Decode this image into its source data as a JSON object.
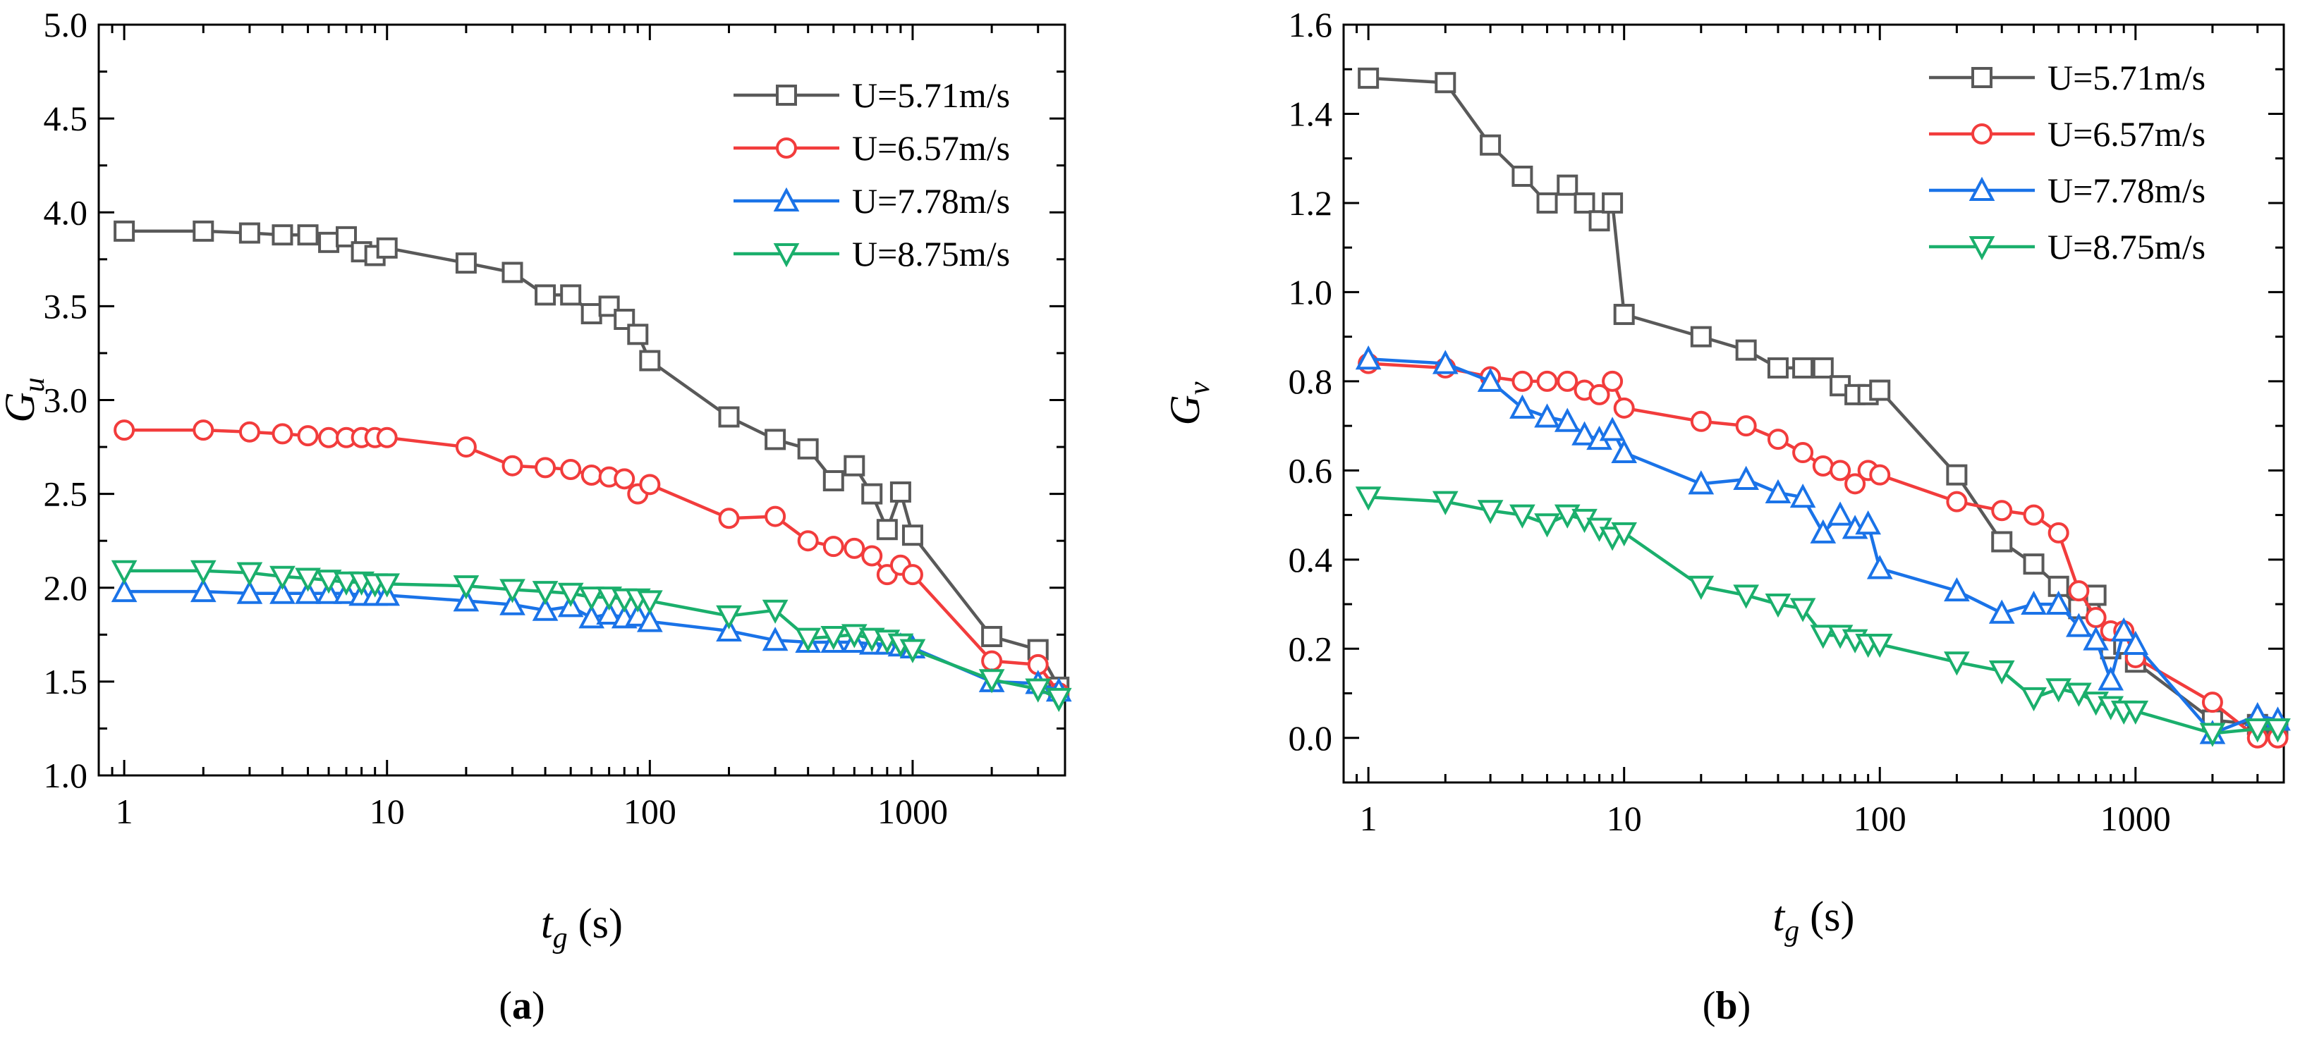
{
  "chart_data": [
    {
      "panel_label": "a",
      "type": "line",
      "x_scale": "log",
      "x_axis_title_main": "t",
      "x_axis_title_sub": "g",
      "x_axis_title_unit": "(s)",
      "y_axis_title_main": "G",
      "y_axis_title_sub": "u",
      "xlim": [
        0.8,
        3800
      ],
      "ylim": [
        1.0,
        5.0
      ],
      "x_ticks": [
        1,
        10,
        100,
        1000
      ],
      "x_tick_labels": [
        "1",
        "10",
        "100",
        "1000"
      ],
      "y_ticks": [
        1.0,
        1.5,
        2.0,
        2.5,
        3.0,
        3.5,
        4.0,
        4.5,
        5.0
      ],
      "y_tick_labels": [
        "1.0",
        "1.5",
        "2.0",
        "2.5",
        "3.0",
        "3.5",
        "4.0",
        "4.5",
        "5.0"
      ],
      "legend_position": "top-right",
      "series": [
        {
          "name": "U=5.71m/s",
          "color": "#595959",
          "marker": "square",
          "x": [
            1,
            2,
            3,
            4,
            5,
            6,
            7,
            8,
            9,
            10,
            20,
            30,
            40,
            50,
            60,
            70,
            80,
            90,
            100,
            200,
            300,
            400,
            500,
            600,
            700,
            800,
            900,
            1000,
            2000,
            3000,
            3600
          ],
          "y": [
            3.9,
            3.9,
            3.89,
            3.88,
            3.88,
            3.84,
            3.87,
            3.79,
            3.77,
            3.81,
            3.73,
            3.68,
            3.56,
            3.56,
            3.46,
            3.5,
            3.43,
            3.35,
            3.21,
            2.91,
            2.79,
            2.74,
            2.57,
            2.65,
            2.5,
            2.31,
            2.51,
            2.28,
            1.74,
            1.67,
            1.47
          ]
        },
        {
          "name": "U=6.57m/s",
          "color": "#f23c3c",
          "marker": "circle",
          "x": [
            1,
            2,
            3,
            4,
            5,
            6,
            7,
            8,
            9,
            10,
            20,
            30,
            40,
            50,
            60,
            70,
            80,
            90,
            100,
            200,
            300,
            400,
            500,
            600,
            700,
            800,
            900,
            1000,
            2000,
            3000,
            3600
          ],
          "y": [
            2.84,
            2.84,
            2.83,
            2.82,
            2.81,
            2.8,
            2.8,
            2.8,
            2.8,
            2.8,
            2.75,
            2.65,
            2.64,
            2.63,
            2.6,
            2.59,
            2.58,
            2.5,
            2.55,
            2.37,
            2.38,
            2.25,
            2.22,
            2.21,
            2.17,
            2.07,
            2.12,
            2.07,
            1.61,
            1.59,
            1.44
          ]
        },
        {
          "name": "U=7.78m/s",
          "color": "#1a73e8",
          "marker": "triangle-up",
          "x": [
            1,
            2,
            3,
            4,
            5,
            6,
            7,
            8,
            9,
            10,
            20,
            30,
            40,
            50,
            60,
            70,
            80,
            90,
            100,
            200,
            300,
            400,
            500,
            600,
            700,
            800,
            900,
            1000,
            2000,
            3000,
            3600
          ],
          "y": [
            1.98,
            1.98,
            1.97,
            1.97,
            1.97,
            1.97,
            1.97,
            1.96,
            1.96,
            1.96,
            1.93,
            1.91,
            1.88,
            1.9,
            1.84,
            1.86,
            1.84,
            1.85,
            1.82,
            1.77,
            1.72,
            1.71,
            1.71,
            1.71,
            1.7,
            1.7,
            1.69,
            1.68,
            1.5,
            1.49,
            1.45
          ]
        },
        {
          "name": "U=8.75m/s",
          "color": "#1aaf6c",
          "marker": "triangle-down",
          "x": [
            1,
            2,
            3,
            4,
            5,
            6,
            7,
            8,
            9,
            10,
            20,
            30,
            40,
            50,
            60,
            70,
            80,
            90,
            100,
            200,
            300,
            400,
            500,
            600,
            700,
            800,
            900,
            1000,
            2000,
            3000,
            3600
          ],
          "y": [
            2.09,
            2.09,
            2.08,
            2.06,
            2.05,
            2.04,
            2.03,
            2.03,
            2.02,
            2.02,
            2.01,
            1.99,
            1.98,
            1.97,
            1.95,
            1.95,
            1.94,
            1.94,
            1.93,
            1.85,
            1.88,
            1.73,
            1.74,
            1.75,
            1.73,
            1.72,
            1.7,
            1.67,
            1.51,
            1.46,
            1.41
          ]
        }
      ]
    },
    {
      "panel_label": "b",
      "type": "line",
      "x_scale": "log",
      "x_axis_title_main": "t",
      "x_axis_title_sub": "g",
      "x_axis_title_unit": "(s)",
      "y_axis_title_main": "G",
      "y_axis_title_sub": "v",
      "xlim": [
        0.8,
        3800
      ],
      "ylim": [
        -0.1,
        1.6
      ],
      "x_ticks": [
        1,
        10,
        100,
        1000
      ],
      "x_tick_labels": [
        "1",
        "10",
        "100",
        "1000"
      ],
      "y_ticks": [
        0.0,
        0.2,
        0.4,
        0.6,
        0.8,
        1.0,
        1.2,
        1.4,
        1.6
      ],
      "y_tick_labels": [
        "0.0",
        "0.2",
        "0.4",
        "0.6",
        "0.8",
        "1.0",
        "1.2",
        "1.4",
        "1.6"
      ],
      "legend_position": "top-right",
      "series": [
        {
          "name": "U=5.71m/s",
          "color": "#595959",
          "marker": "square",
          "x": [
            1,
            2,
            3,
            4,
            5,
            6,
            7,
            8,
            9,
            10,
            20,
            30,
            40,
            50,
            60,
            70,
            80,
            90,
            100,
            200,
            300,
            400,
            500,
            600,
            700,
            800,
            900,
            1000,
            2000,
            3000,
            3600
          ],
          "y": [
            1.48,
            1.47,
            1.33,
            1.26,
            1.2,
            1.24,
            1.2,
            1.16,
            1.2,
            0.95,
            0.9,
            0.87,
            0.83,
            0.83,
            0.83,
            0.79,
            0.77,
            0.77,
            0.78,
            0.59,
            0.44,
            0.39,
            0.34,
            0.29,
            0.32,
            0.2,
            0.21,
            0.17,
            0.04,
            0.03,
            0.02
          ]
        },
        {
          "name": "U=6.57m/s",
          "color": "#f23c3c",
          "marker": "circle",
          "x": [
            1,
            2,
            3,
            4,
            5,
            6,
            7,
            8,
            9,
            10,
            20,
            30,
            40,
            50,
            60,
            70,
            80,
            90,
            100,
            200,
            300,
            400,
            500,
            600,
            700,
            800,
            900,
            1000,
            2000,
            3000,
            3600
          ],
          "y": [
            0.84,
            0.83,
            0.81,
            0.8,
            0.8,
            0.8,
            0.78,
            0.77,
            0.8,
            0.74,
            0.71,
            0.7,
            0.67,
            0.64,
            0.61,
            0.6,
            0.57,
            0.6,
            0.59,
            0.53,
            0.51,
            0.5,
            0.46,
            0.33,
            0.27,
            0.24,
            0.24,
            0.18,
            0.08,
            0.0,
            0.0
          ]
        },
        {
          "name": "U=7.78m/s",
          "color": "#1a73e8",
          "marker": "triangle-up",
          "x": [
            1,
            2,
            3,
            4,
            5,
            6,
            7,
            8,
            9,
            10,
            20,
            30,
            40,
            50,
            60,
            70,
            80,
            90,
            100,
            200,
            300,
            400,
            500,
            600,
            700,
            800,
            900,
            1000,
            2000,
            3000,
            3600
          ],
          "y": [
            0.85,
            0.84,
            0.8,
            0.74,
            0.72,
            0.71,
            0.68,
            0.67,
            0.69,
            0.64,
            0.57,
            0.58,
            0.55,
            0.54,
            0.46,
            0.5,
            0.47,
            0.48,
            0.38,
            0.33,
            0.28,
            0.3,
            0.3,
            0.25,
            0.22,
            0.13,
            0.24,
            0.21,
            0.01,
            0.05,
            0.04
          ]
        },
        {
          "name": "U=8.75m/s",
          "color": "#1aaf6c",
          "marker": "triangle-down",
          "x": [
            1,
            2,
            3,
            4,
            5,
            6,
            7,
            8,
            9,
            10,
            20,
            30,
            40,
            50,
            60,
            70,
            80,
            90,
            100,
            200,
            300,
            400,
            500,
            600,
            700,
            800,
            900,
            1000,
            2000,
            3000,
            3600
          ],
          "y": [
            0.54,
            0.53,
            0.51,
            0.5,
            0.48,
            0.5,
            0.49,
            0.47,
            0.45,
            0.46,
            0.34,
            0.32,
            0.3,
            0.29,
            0.23,
            0.23,
            0.22,
            0.21,
            0.21,
            0.17,
            0.15,
            0.09,
            0.11,
            0.1,
            0.08,
            0.07,
            0.06,
            0.06,
            0.01,
            0.02,
            0.02
          ]
        }
      ]
    }
  ]
}
